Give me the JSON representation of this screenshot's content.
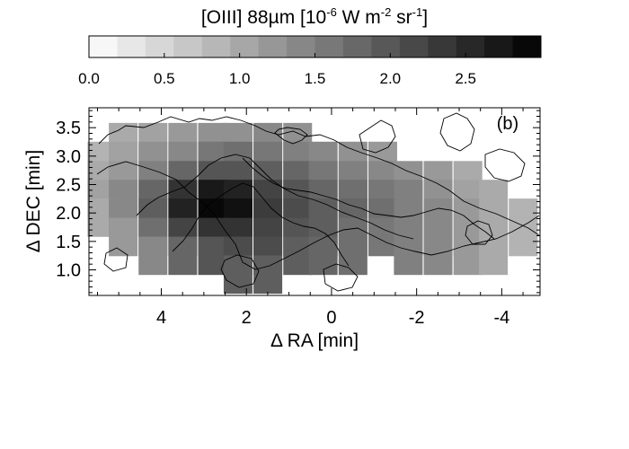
{
  "chart_data": {
    "type": "heatmap",
    "panel_label": "(b)",
    "colorbar": {
      "title": "[OIII] 88µm [10",
      "title_exp1": "-6",
      "title_unit_mid": " W m",
      "title_exp2": "-2",
      "title_unit_sr": " sr",
      "title_exp3": "-1",
      "title_close": "]",
      "range": [
        0.0,
        3.0
      ],
      "tick_labels": [
        "0.0",
        "0.5",
        "1.0",
        "1.5",
        "2.0",
        "2.5"
      ],
      "tick_values": [
        0.0,
        0.5,
        1.0,
        1.5,
        2.0,
        2.5
      ],
      "n_steps": 16,
      "colormap": "white-to-black grayscale"
    },
    "xlabel": "Δ RA [min]",
    "ylabel": "Δ DEC [min]",
    "xlim": [
      5.7,
      -4.9
    ],
    "ylim": [
      0.55,
      3.85
    ],
    "x_ticks": [
      4,
      2,
      0,
      -2,
      -4
    ],
    "x_tick_labels": [
      "4",
      "2",
      "0",
      "-2",
      "-4"
    ],
    "y_ticks": [
      1.0,
      1.5,
      2.0,
      2.5,
      3.0,
      3.5
    ],
    "y_tick_labels": [
      "1.0",
      "1.5",
      "2.0",
      "2.5",
      "3.0",
      "3.5"
    ],
    "grid": false,
    "pixel_size_min": 0.667,
    "rows": [
      {
        "dec": 3.25,
        "cells": [
          [
            4.9,
            1.0
          ],
          [
            4.2,
            1.1
          ],
          [
            3.5,
            1.2
          ],
          [
            2.8,
            1.3
          ],
          [
            2.2,
            1.3
          ],
          [
            1.5,
            1.4
          ],
          [
            0.8,
            1.3
          ]
        ]
      },
      {
        "dec": 2.92,
        "cells": [
          [
            5.4,
            0.9
          ],
          [
            4.9,
            1.1
          ],
          [
            4.2,
            1.3
          ],
          [
            3.5,
            1.4
          ],
          [
            2.8,
            1.6
          ],
          [
            2.2,
            1.7
          ],
          [
            1.5,
            1.6
          ],
          [
            0.8,
            1.5
          ],
          [
            0.2,
            1.4
          ],
          [
            -0.5,
            1.3
          ],
          [
            -1.2,
            1.2
          ]
        ]
      },
      {
        "dec": 2.58,
        "cells": [
          [
            5.4,
            1.0
          ],
          [
            4.9,
            1.2
          ],
          [
            4.2,
            1.5
          ],
          [
            3.5,
            1.8
          ],
          [
            2.8,
            2.0
          ],
          [
            2.2,
            2.0
          ],
          [
            1.5,
            1.9
          ],
          [
            0.8,
            1.8
          ],
          [
            0.2,
            1.6
          ],
          [
            -0.5,
            1.5
          ],
          [
            -1.2,
            1.4
          ],
          [
            -1.8,
            1.3
          ],
          [
            -2.5,
            1.2
          ],
          [
            -3.2,
            1.0
          ]
        ]
      },
      {
        "dec": 2.25,
        "cells": [
          [
            5.4,
            1.1
          ],
          [
            4.9,
            1.4
          ],
          [
            4.2,
            1.8
          ],
          [
            3.5,
            2.4
          ],
          [
            2.8,
            2.7
          ],
          [
            2.2,
            2.6
          ],
          [
            1.5,
            2.2
          ],
          [
            0.8,
            2.0
          ],
          [
            0.2,
            1.8
          ],
          [
            -0.5,
            1.7
          ],
          [
            -1.2,
            1.6
          ],
          [
            -1.8,
            1.5
          ],
          [
            -2.5,
            1.3
          ],
          [
            -3.2,
            1.1
          ],
          [
            -3.8,
            1.0
          ]
        ]
      },
      {
        "dec": 1.92,
        "cells": [
          [
            5.4,
            1.0
          ],
          [
            4.9,
            1.4
          ],
          [
            4.2,
            1.9
          ],
          [
            3.5,
            2.6
          ],
          [
            2.8,
            2.9
          ],
          [
            2.2,
            2.8
          ],
          [
            1.5,
            2.3
          ],
          [
            0.8,
            2.1
          ],
          [
            0.2,
            1.9
          ],
          [
            -0.5,
            1.8
          ],
          [
            -1.2,
            1.7
          ],
          [
            -1.8,
            1.5
          ],
          [
            -2.5,
            1.4
          ],
          [
            -3.2,
            1.2
          ],
          [
            -3.8,
            1.0
          ],
          [
            -4.5,
            0.9
          ]
        ]
      },
      {
        "dec": 1.58,
        "cells": [
          [
            4.9,
            1.2
          ],
          [
            4.2,
            1.7
          ],
          [
            3.5,
            2.2
          ],
          [
            2.8,
            2.4
          ],
          [
            2.2,
            2.4
          ],
          [
            1.5,
            2.2
          ],
          [
            0.8,
            2.0
          ],
          [
            0.2,
            1.9
          ],
          [
            -0.5,
            1.7
          ],
          [
            -1.2,
            1.6
          ],
          [
            -1.8,
            1.5
          ],
          [
            -2.5,
            1.4
          ],
          [
            -3.2,
            1.2
          ],
          [
            -3.8,
            1.0
          ],
          [
            -4.5,
            0.9
          ]
        ]
      },
      {
        "dec": 1.25,
        "cells": [
          [
            4.2,
            1.4
          ],
          [
            3.5,
            1.8
          ],
          [
            2.8,
            2.0
          ],
          [
            2.2,
            2.1
          ],
          [
            1.5,
            2.1
          ],
          [
            0.8,
            1.9
          ],
          [
            0.2,
            1.8
          ],
          [
            -0.5,
            1.7
          ],
          [
            -1.8,
            1.5
          ],
          [
            -2.5,
            1.4
          ],
          [
            -3.2,
            1.2
          ],
          [
            -3.8,
            1.0
          ]
        ]
      },
      {
        "dec": 0.92,
        "cells": [
          [
            2.2,
            1.9
          ],
          [
            1.5,
            1.9
          ]
        ]
      }
    ]
  }
}
